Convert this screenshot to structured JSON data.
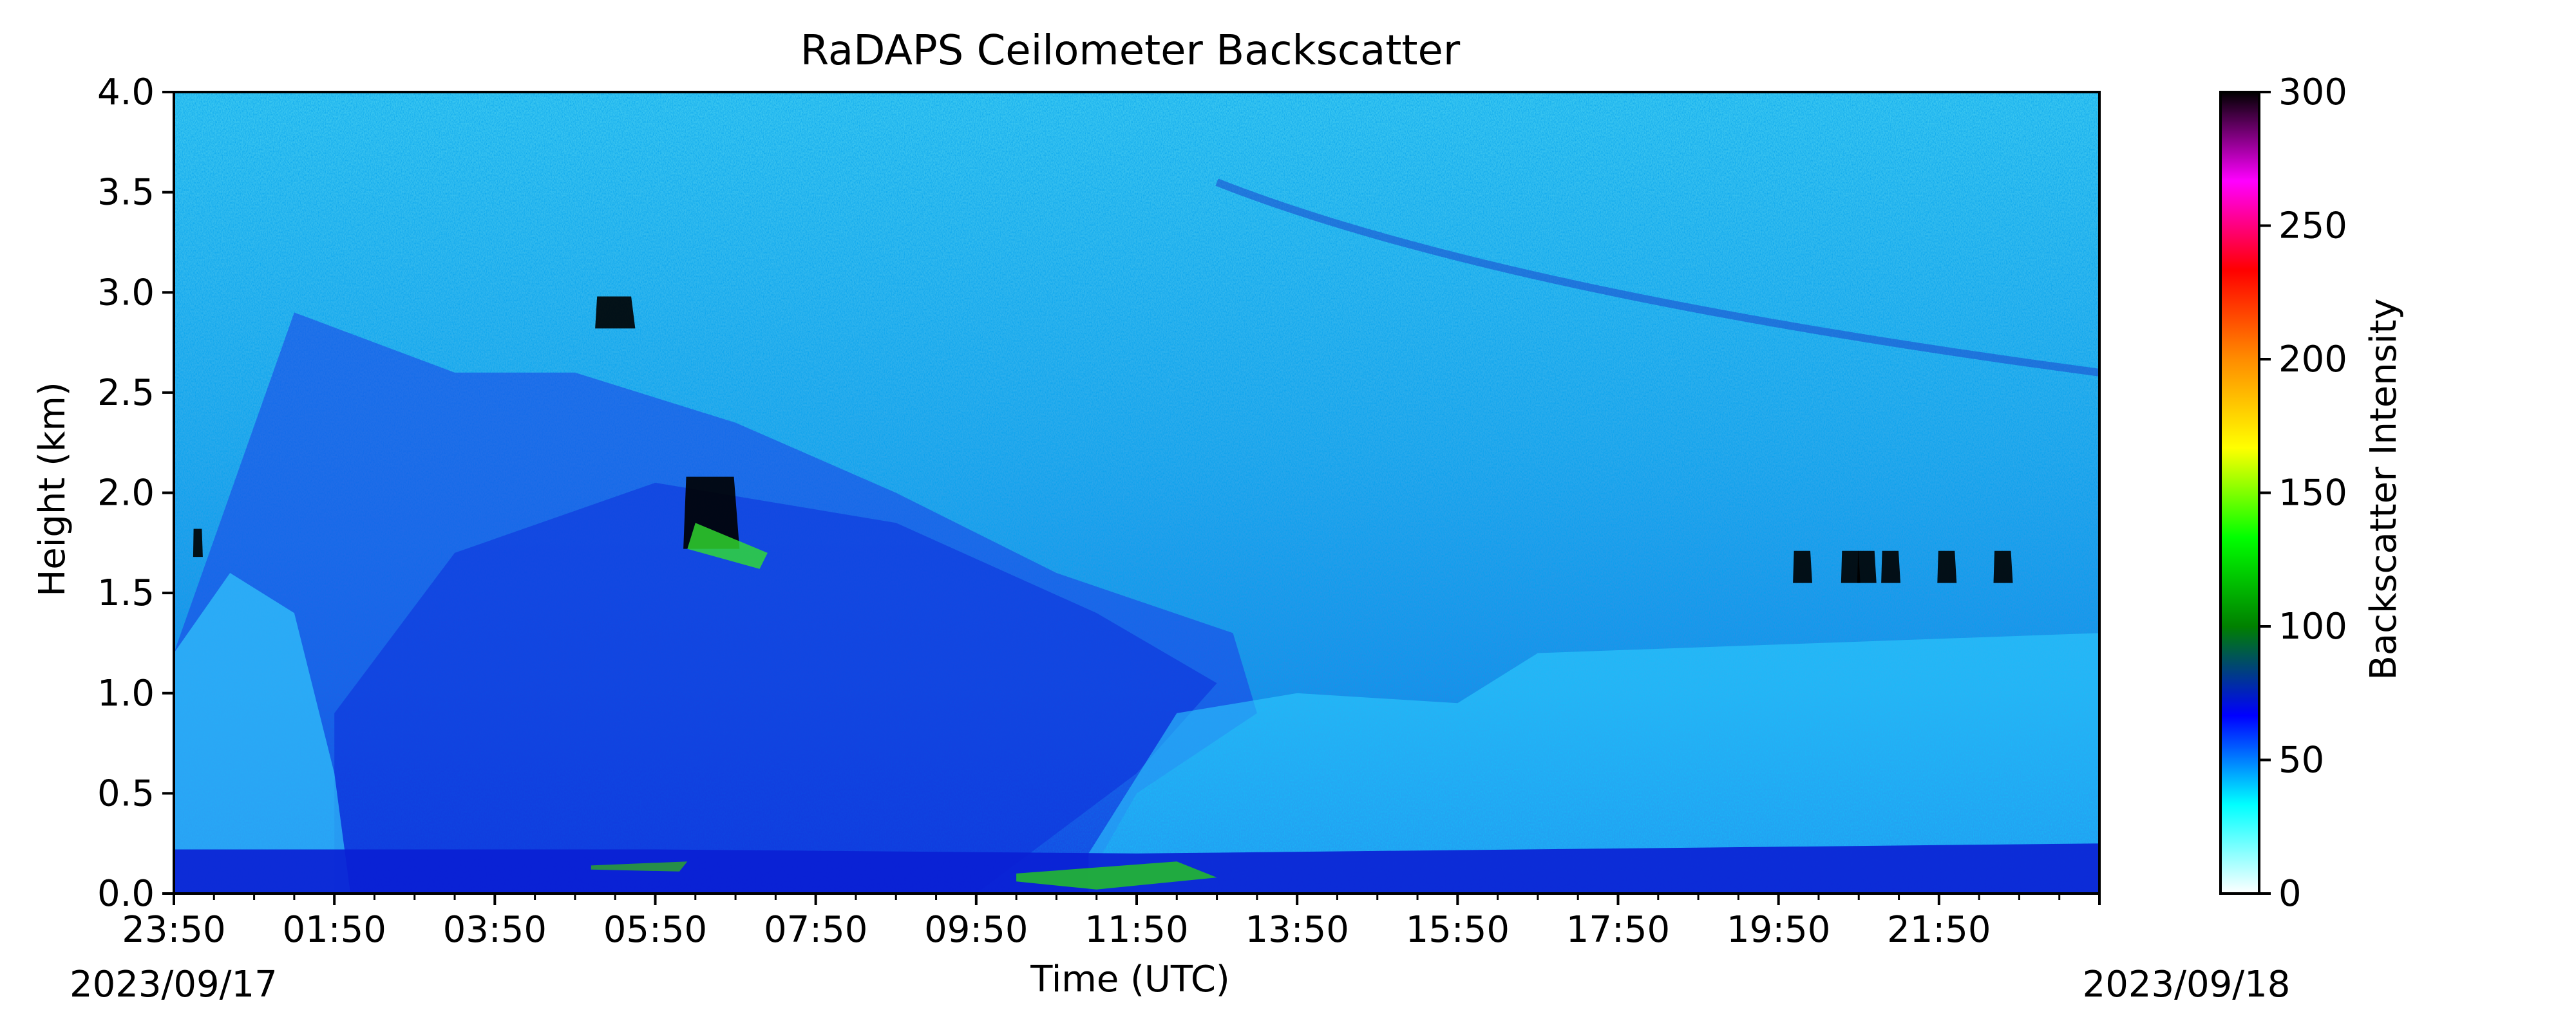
{
  "chart_data": {
    "type": "heatmap",
    "title": "RaDAPS Ceilometer Backscatter",
    "xlabel": "Time (UTC)",
    "ylabel": "Height (km)",
    "x_start_date": "2023/09/17",
    "x_end_date": "2023/09/18",
    "x_tick_labels": [
      "23:50",
      "01:50",
      "03:50",
      "05:50",
      "07:50",
      "09:50",
      "11:50",
      "13:50",
      "15:50",
      "17:50",
      "19:50",
      "21:50"
    ],
    "xlim": [
      "2023-09-17T23:50",
      "2023-09-18T23:50"
    ],
    "ylim": [
      0.0,
      4.0
    ],
    "y_ticks": [
      0.0,
      0.5,
      1.0,
      1.5,
      2.0,
      2.5,
      3.0,
      3.5,
      4.0
    ],
    "y_tick_labels": [
      "0.0",
      "0.5",
      "1.0",
      "1.5",
      "2.0",
      "2.5",
      "3.0",
      "3.5",
      "4.0"
    ],
    "colorbar": {
      "label": "Backscatter Intensity",
      "range": [
        0,
        300
      ],
      "ticks": [
        0,
        50,
        100,
        150,
        200,
        250,
        300
      ],
      "tick_labels": [
        "0",
        "50",
        "100",
        "150",
        "200",
        "250",
        "300"
      ],
      "colors": [
        "#ffffff",
        "#00ffff",
        "#0000ff",
        "#008000",
        "#00ff00",
        "#ffff00",
        "#ff8c00",
        "#ff0000",
        "#ff00ff",
        "#000000"
      ]
    },
    "grid": false
  }
}
